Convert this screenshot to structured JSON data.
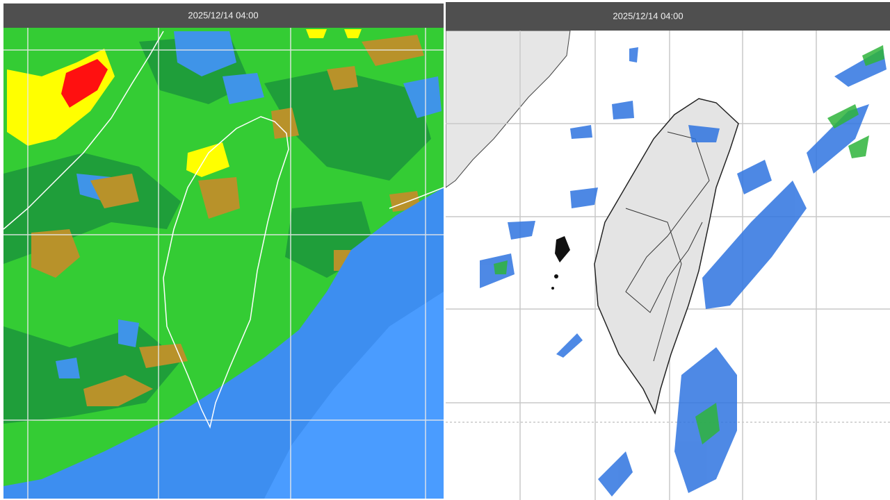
{
  "panels": [
    {
      "title": "2025/12/14 04:00"
    },
    {
      "title": "2025/12/14 04:00"
    }
  ]
}
